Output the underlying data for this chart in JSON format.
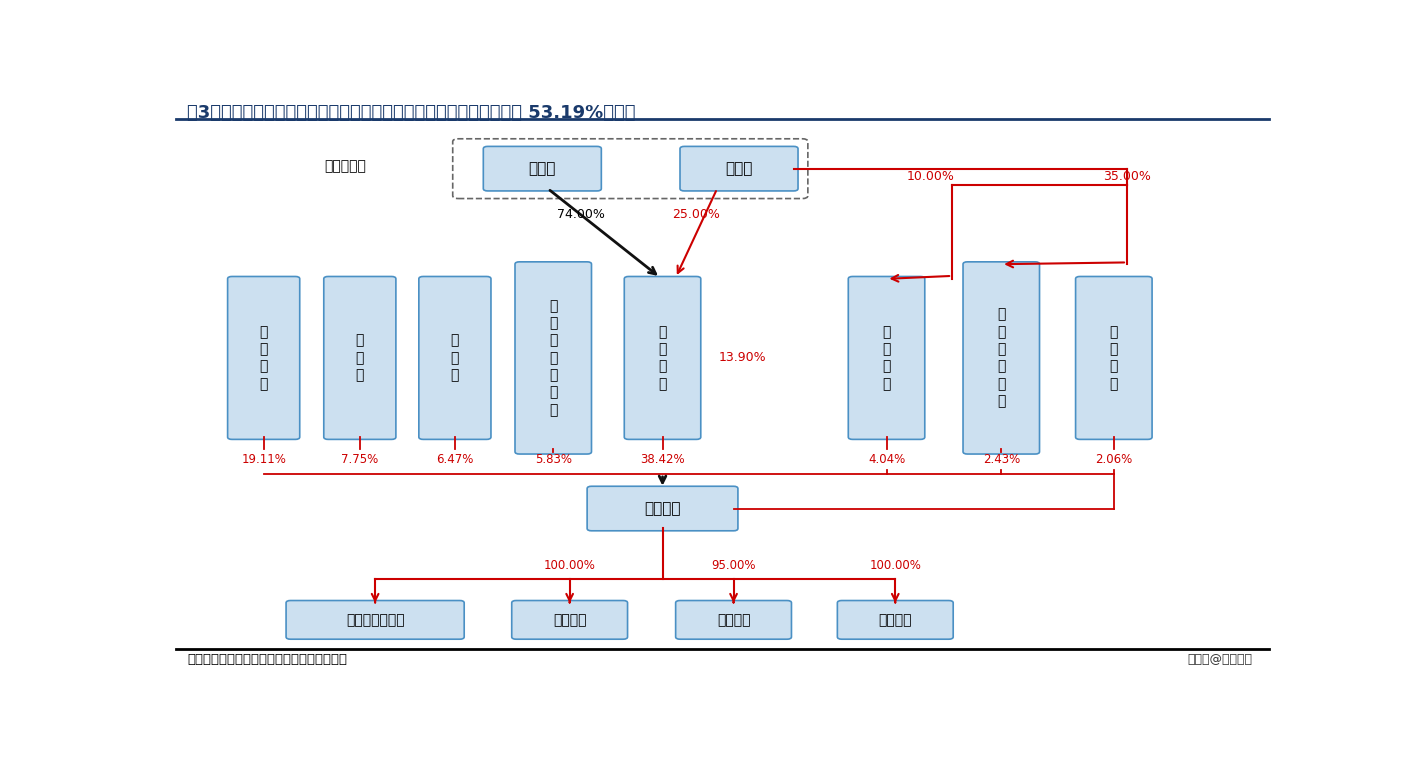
{
  "title": "图3：截至发行前，公司前两大股东于德海先生与于本宏先生合计持有 53.19%的股份",
  "title_color": "#1a3a6b",
  "title_fontsize": 13,
  "bg_color": "#ffffff",
  "box_fill": "#cce0f0",
  "box_edge": "#4a90c4",
  "red_color": "#cc0000",
  "dark_arrow_color": "#111111",
  "source_text": "数据来源：公司招股说明书，东吴证券研究所",
  "watermark": "一头条@远瞻智库",
  "label_actual_controller": "实际控制人"
}
